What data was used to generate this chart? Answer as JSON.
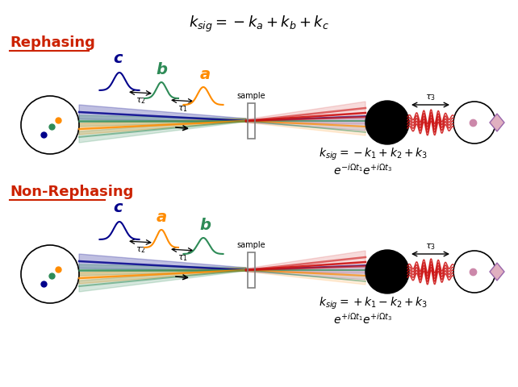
{
  "title_eq": "k_{sig} = -k_a + k_b + k_c",
  "rephasing_label": "Rephasing",
  "nonrephasing_label": "Non-Rephasing",
  "rephasing_eq1": "k_{sig} =  -k_1 + k_2 + k_3",
  "rephasing_eq2": "e^{-i\\Omega t_1}e^{+i\\Omega t_3}",
  "nonrephasing_eq1": "k_{sig} =  +k_1 - k_2 + k_3",
  "nonrephasing_eq2": "e^{+i\\Omega t_1}e^{+i\\Omega t_3}",
  "beam_colors": {
    "a": "#FF8C00",
    "b": "#2E8B57",
    "c": "#00008B",
    "signal": "#CC1111"
  },
  "bg_color": "#FFFFFF",
  "label_color": "#CC2200"
}
